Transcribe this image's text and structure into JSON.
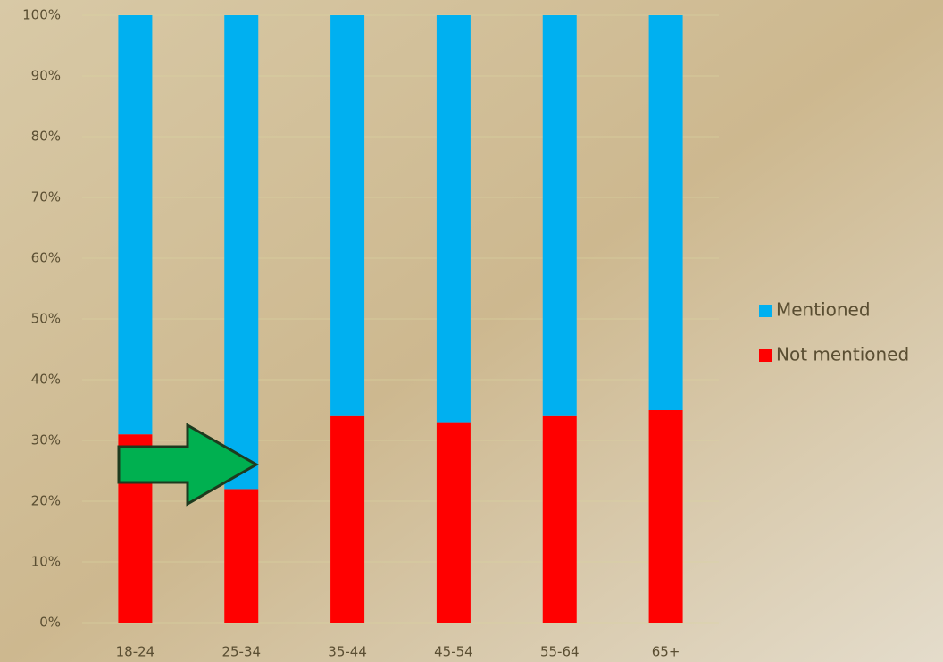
{
  "chart_data": {
    "type": "stacked_bar",
    "categories": [
      "18-24",
      "25-34",
      "35-44",
      "45-54",
      "55-64",
      "65+"
    ],
    "series": [
      {
        "name": "Mentioned",
        "color": "#00b0f0",
        "values": [
          69,
          78,
          66,
          67,
          66,
          65
        ]
      },
      {
        "name": "Not mentioned",
        "color": "#ff0000",
        "values": [
          31,
          22,
          34,
          33,
          34,
          35
        ]
      }
    ],
    "ylim": [
      0,
      100
    ],
    "yticks": [
      {
        "value": 0,
        "label": "0%"
      },
      {
        "value": 10,
        "label": "10%"
      },
      {
        "value": 20,
        "label": "20%"
      },
      {
        "value": 30,
        "label": "30%"
      },
      {
        "value": 40,
        "label": "40%"
      },
      {
        "value": 50,
        "label": "50%"
      },
      {
        "value": 60,
        "label": "60%"
      },
      {
        "value": 70,
        "label": "70%"
      },
      {
        "value": 80,
        "label": "80%"
      },
      {
        "value": 90,
        "label": "90%"
      },
      {
        "value": 100,
        "label": "100%"
      }
    ],
    "grid": true,
    "legend": "right"
  }
}
